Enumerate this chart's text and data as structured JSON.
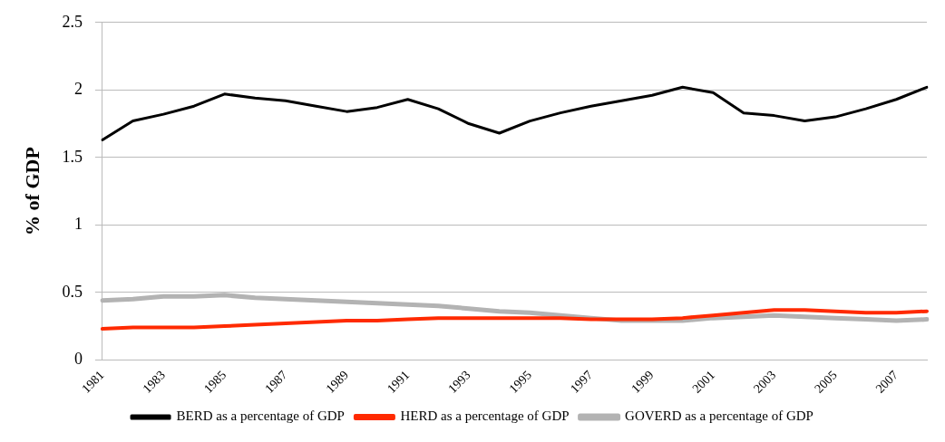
{
  "chart_data": {
    "type": "line",
    "ylabel": "% of GDP",
    "categories": [
      "1981",
      null,
      "1983",
      null,
      "1985",
      null,
      "1987",
      null,
      "1989",
      null,
      "1991",
      null,
      "1993",
      null,
      "1995",
      null,
      "1997",
      null,
      "1999",
      null,
      "2001",
      null,
      "2003",
      null,
      "2005",
      null,
      "2007",
      null
    ],
    "series": [
      {
        "name": "BERD as a percentage of GDP",
        "color": "#000000",
        "values": [
          1.63,
          1.77,
          1.82,
          1.88,
          1.97,
          1.94,
          1.92,
          1.88,
          1.84,
          1.87,
          1.93,
          1.86,
          1.75,
          1.68,
          1.77,
          1.83,
          1.88,
          1.92,
          1.96,
          2.02,
          1.98,
          1.83,
          1.81,
          1.77,
          1.8,
          1.86,
          1.93,
          2.02
        ]
      },
      {
        "name": "HERD as a percentage of GDP",
        "color": "#ff2a00",
        "values": [
          0.23,
          0.24,
          0.24,
          0.24,
          0.25,
          0.26,
          0.27,
          0.28,
          0.29,
          0.29,
          0.3,
          0.31,
          0.31,
          0.31,
          0.31,
          0.31,
          0.3,
          0.3,
          0.3,
          0.31,
          0.33,
          0.35,
          0.37,
          0.37,
          0.36,
          0.35,
          0.35,
          0.36
        ]
      },
      {
        "name": "GOVERD as a percentage of GDP",
        "color": "#b3b3b3",
        "values": [
          0.44,
          0.45,
          0.47,
          0.47,
          0.48,
          0.46,
          0.45,
          0.44,
          0.43,
          0.42,
          0.41,
          0.4,
          0.38,
          0.36,
          0.35,
          0.33,
          0.31,
          0.29,
          0.29,
          0.29,
          0.31,
          0.32,
          0.33,
          0.32,
          0.31,
          0.3,
          0.29,
          0.3
        ]
      }
    ],
    "ylim": [
      0,
      2.5
    ],
    "yticks": [
      0,
      0.5,
      1,
      1.5,
      2,
      2.5
    ],
    "grid": "y",
    "legend": "bottom",
    "marker": "none",
    "line_style": "solid"
  }
}
